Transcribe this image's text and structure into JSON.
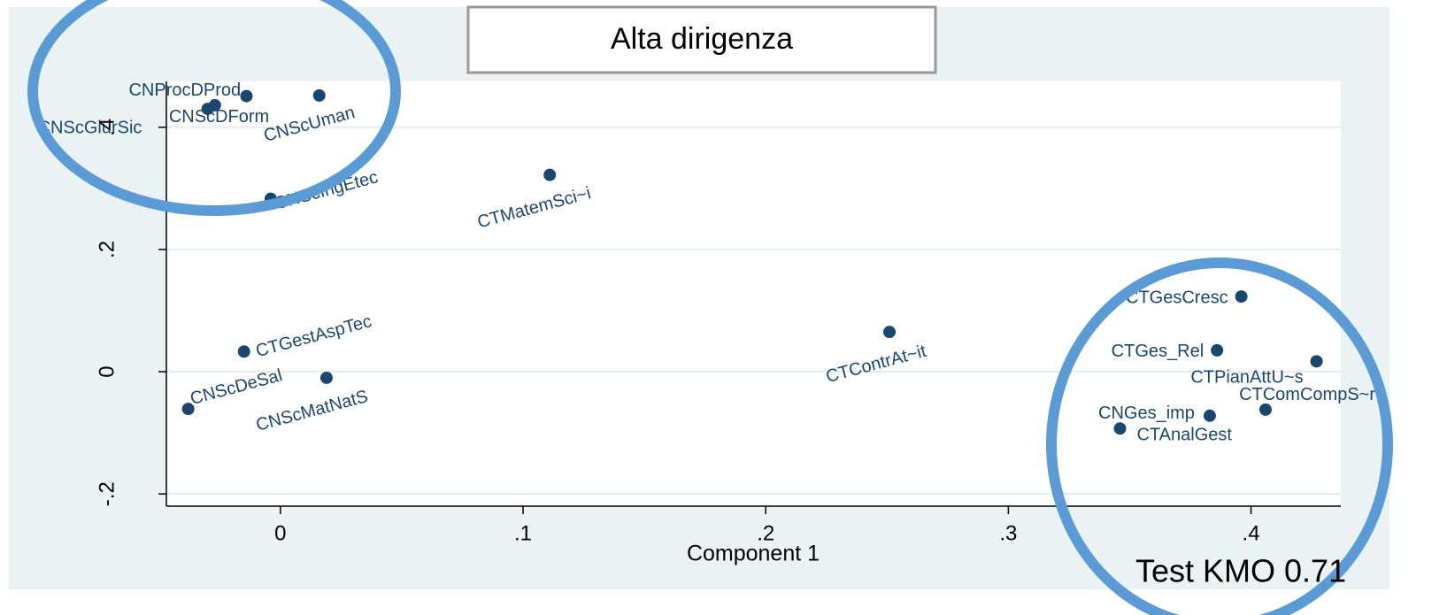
{
  "chart_data": {
    "type": "scatter",
    "title": "Alta dirigenza",
    "x_label": "Component 1",
    "annotation": "Test KMO 0.71",
    "labels": [
      "CNProcDProd",
      "CNScUman",
      "CNScDForm",
      "CNScGiurSic",
      "CNScIngEtec",
      "CTMatemSci~i",
      "CTGesCresc",
      "CTGestAspTec",
      "CTContrAt~it",
      "CTGes_Rel",
      "CTPianAttU~s",
      "CNScMatNatS",
      "CNScDeSal",
      "CTComCompS~r",
      "CNGes_imp",
      "CTAnalGest"
    ],
    "x": [
      -0.014,
      0.016,
      -0.027,
      -0.03,
      -0.004,
      0.111,
      0.396,
      -0.015,
      0.251,
      0.386,
      0.427,
      0.019,
      -0.038,
      0.406,
      0.383,
      0.346
    ],
    "values": [
      0.451,
      0.452,
      0.436,
      0.43,
      0.283,
      0.322,
      0.123,
      0.033,
      0.065,
      0.035,
      0.017,
      -0.01,
      -0.061,
      -0.062,
      -0.072,
      -0.093
    ],
    "color": "#1a476f",
    "xlim": [
      -0.047,
      0.437
    ],
    "ylim": [
      -0.22,
      0.475
    ],
    "xticks": [
      0,
      {
        "value": 0.1,
        "label": ".1"
      },
      {
        "value": 0.2,
        "label": ".2"
      },
      {
        "value": 0.3,
        "label": ".3"
      },
      {
        "value": 0.4,
        "label": ".4"
      }
    ],
    "yticks": [
      {
        "value": -0.2,
        "label": "-.2"
      },
      0,
      {
        "value": 0.2,
        "label": ".2"
      },
      {
        "value": 0.4,
        "label": ".4"
      }
    ],
    "grid": true
  }
}
